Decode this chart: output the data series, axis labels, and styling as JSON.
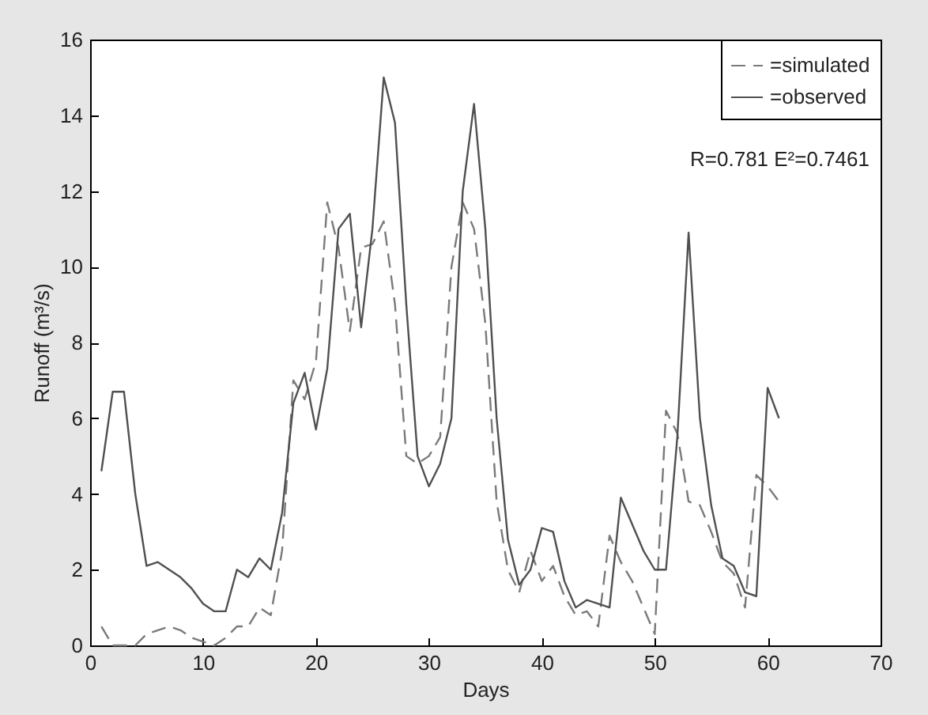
{
  "chart_data": {
    "type": "line",
    "xlabel": "Days",
    "ylabel": "Runoff (m³/s)",
    "annotations": [
      "R=0.781 E²=0.7461"
    ],
    "x": [
      1,
      2,
      3,
      4,
      5,
      6,
      7,
      8,
      9,
      10,
      11,
      12,
      13,
      14,
      15,
      16,
      17,
      18,
      19,
      20,
      21,
      22,
      23,
      24,
      25,
      26,
      27,
      28,
      29,
      30,
      31,
      32,
      33,
      34,
      35,
      36,
      37,
      38,
      39,
      40,
      41,
      42,
      43,
      44,
      45,
      46,
      47,
      48,
      49,
      50,
      51,
      52,
      53,
      54,
      55,
      56,
      57,
      58,
      59,
      60,
      61
    ],
    "series": [
      {
        "name": "=simulated",
        "color": "#7a7a7a",
        "line_style": "dashed",
        "values": [
          0.5,
          0.0,
          0.0,
          0.0,
          0.3,
          0.4,
          0.5,
          0.4,
          0.2,
          0.1,
          0.0,
          0.2,
          0.5,
          0.5,
          1.0,
          0.8,
          2.5,
          7.0,
          6.5,
          7.5,
          11.7,
          10.5,
          8.3,
          10.5,
          10.6,
          11.2,
          9.0,
          5.0,
          4.8,
          5.0,
          5.5,
          10.0,
          11.7,
          11.0,
          8.5,
          3.8,
          2.0,
          1.4,
          2.5,
          1.7,
          2.1,
          1.3,
          0.8,
          0.9,
          0.5,
          2.9,
          2.2,
          1.7,
          1.0,
          0.3,
          6.2,
          5.6,
          3.8,
          3.7,
          3.0,
          2.2,
          1.9,
          1.0,
          4.5,
          4.2,
          3.8
        ]
      },
      {
        "name": "=observed",
        "color": "#505050",
        "line_style": "solid",
        "values": [
          4.6,
          6.7,
          6.7,
          4.0,
          2.1,
          2.2,
          2.0,
          1.8,
          1.5,
          1.1,
          0.9,
          0.9,
          2.0,
          1.8,
          2.3,
          2.0,
          3.5,
          6.4,
          7.2,
          5.7,
          7.3,
          11.0,
          11.4,
          8.4,
          11.0,
          15.0,
          13.8,
          9.0,
          5.0,
          4.2,
          4.8,
          6.0,
          12.0,
          14.3,
          11.0,
          6.0,
          2.8,
          1.6,
          2.0,
          3.1,
          3.0,
          1.7,
          1.0,
          1.2,
          1.1,
          1.0,
          3.9,
          3.2,
          2.5,
          2.0,
          2.0,
          5.5,
          10.9,
          6.0,
          3.7,
          2.3,
          2.1,
          1.4,
          1.3,
          6.8,
          6.0
        ]
      }
    ],
    "xlim": [
      0,
      70
    ],
    "xticks": [
      0,
      10,
      20,
      30,
      40,
      50,
      60,
      70
    ],
    "ylim": [
      0,
      16
    ],
    "yticks": [
      0,
      2,
      4,
      6,
      8,
      10,
      12,
      14,
      16
    ],
    "grid": false,
    "legend": "top right",
    "marker": "none"
  }
}
